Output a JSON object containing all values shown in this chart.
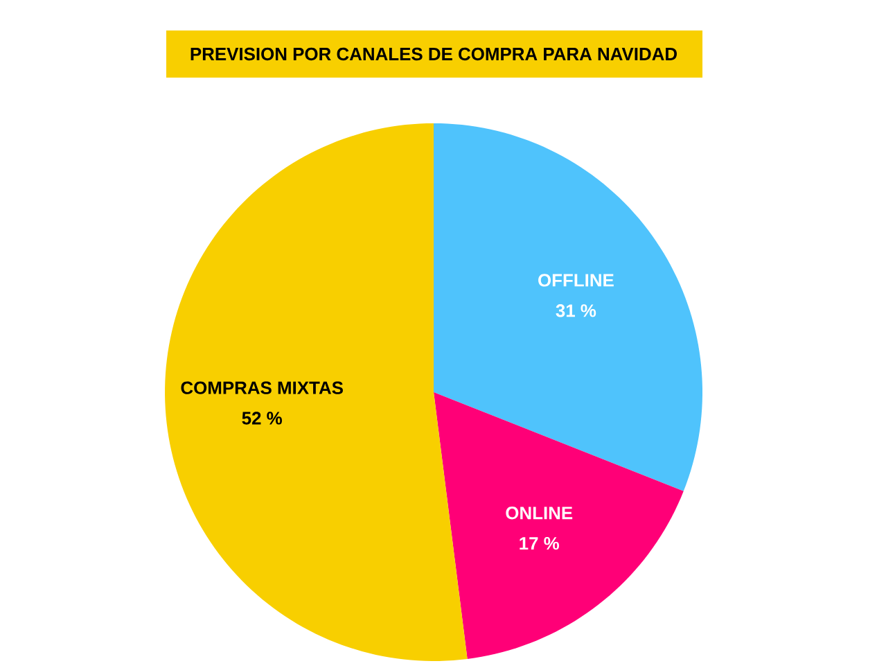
{
  "chart_data": {
    "type": "pie",
    "title": "PREVISION POR CANALES DE COMPRA PARA NAVIDAD",
    "categories": [
      "OFFLINE",
      "ONLINE",
      "COMPRAS MIXTAS"
    ],
    "values": [
      31,
      17,
      52
    ],
    "value_labels": [
      "31 %",
      "17 %",
      "52 %"
    ],
    "colors": [
      "#4fc3fc",
      "#ff0077",
      "#f8cf00"
    ],
    "legend": false
  }
}
